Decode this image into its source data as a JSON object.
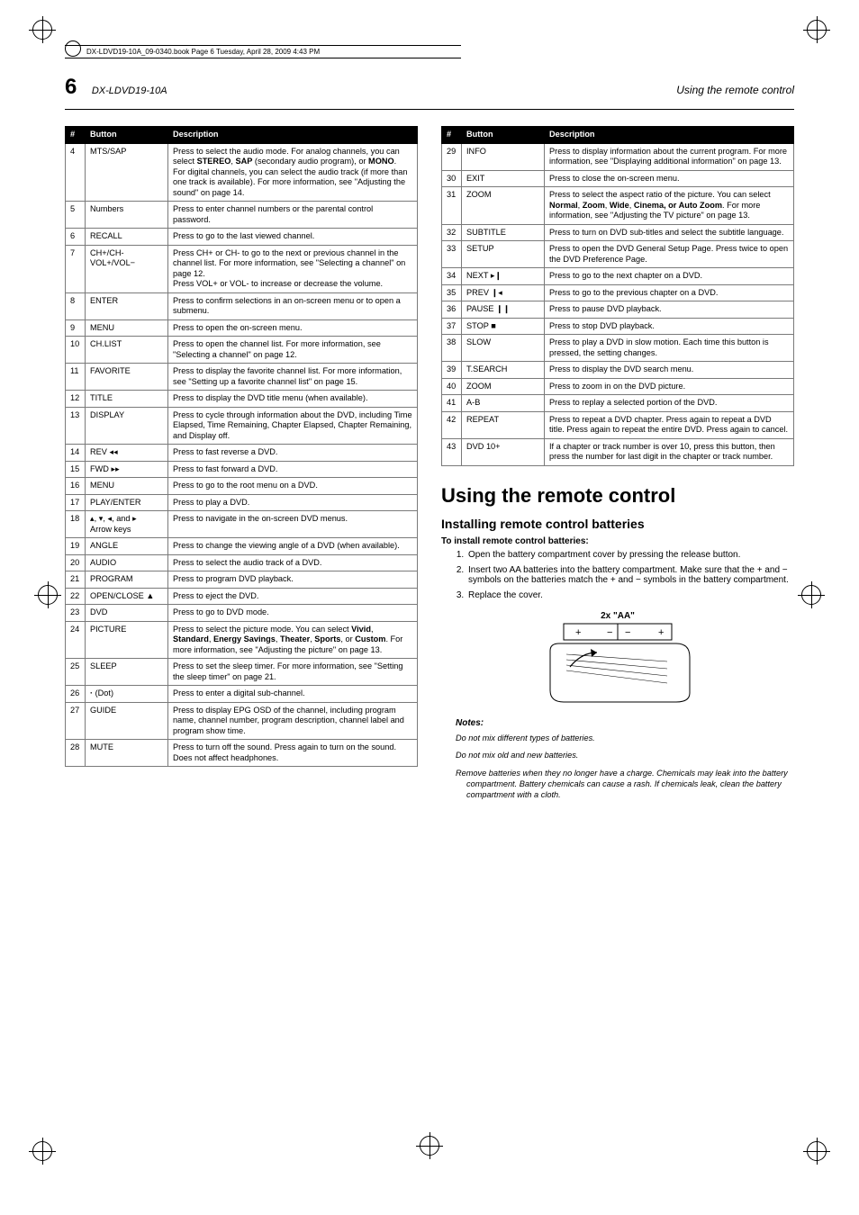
{
  "pageNumber": "6",
  "runningTop": "DX-LDVD19-10A_09-0340.book  Page 6  Tuesday, April 28, 2009  4:43 PM",
  "model": "DX-LDVD19-10A",
  "sectionRight": "Using the remote control",
  "tableHeaders": {
    "num": "#",
    "btn": "Button",
    "desc": "Description"
  },
  "leftRows": [
    {
      "n": "4",
      "b": "MTS/SAP",
      "d": "Press to select the audio mode. For analog channels, you can select <b>STEREO</b>, <b>SAP</b> (secondary audio program), or <b>MONO</b>.<br>For digital channels, you can select the audio track (if more than one track is available). For more information, see \"Adjusting the sound\" on page 14."
    },
    {
      "n": "5",
      "b": "Numbers",
      "d": "Press to enter channel numbers or the parental control password."
    },
    {
      "n": "6",
      "b": "RECALL",
      "d": "Press to go to the last viewed channel."
    },
    {
      "n": "7",
      "b": "CH+/CH-<br>VOL+/VOL−",
      "d": "Press CH+ or CH- to go to the next or previous channel in the channel list. For more information, see \"Selecting a channel\" on page 12.<br>Press VOL+ or VOL- to increase or decrease the volume."
    },
    {
      "n": "8",
      "b": "ENTER",
      "d": "Press to confirm selections in an on-screen menu or to open a submenu."
    },
    {
      "n": "9",
      "b": "MENU",
      "d": "Press to open the on-screen menu."
    },
    {
      "n": "10",
      "b": "CH.LIST",
      "d": "Press to open the channel list. For more information, see \"Selecting a channel\" on page 12."
    },
    {
      "n": "11",
      "b": "FAVORITE",
      "d": "Press to display the favorite channel list. For more information, see \"Setting up a favorite channel list\" on page 15."
    },
    {
      "n": "12",
      "b": "TITLE",
      "d": "Press to display the DVD title menu (when available)."
    },
    {
      "n": "13",
      "b": "DISPLAY",
      "d": "Press to cycle through information about the DVD, including Time Elapsed, Time Remaining, Chapter Elapsed, Chapter Remaining, and Display off."
    },
    {
      "n": "14",
      "b": "REV <span class='sym'>◂◂</span>",
      "d": "Press to fast reverse a DVD."
    },
    {
      "n": "15",
      "b": "FWD <span class='sym'>▸▸</span>",
      "d": "Press to fast forward a DVD."
    },
    {
      "n": "16",
      "b": "MENU",
      "d": "Press to go to the root menu on a DVD."
    },
    {
      "n": "17",
      "b": "PLAY/ENTER",
      "d": "Press to play a DVD."
    },
    {
      "n": "18",
      "b": "<span class='sym'>▴</span>, <span class='sym'>▾</span>, <span class='sym'>◂</span>, and <span class='sym'>▸</span><br>Arrow keys",
      "d": "Press to navigate in the on-screen DVD menus."
    },
    {
      "n": "19",
      "b": "ANGLE",
      "d": "Press to change the viewing angle of a DVD (when available)."
    },
    {
      "n": "20",
      "b": "AUDIO",
      "d": "Press to select the audio track of a DVD."
    },
    {
      "n": "21",
      "b": "PROGRAM",
      "d": "Press to program DVD playback."
    },
    {
      "n": "22",
      "b": "OPEN/CLOSE <span class='sym'>▲</span>",
      "d": "Press to eject the DVD."
    },
    {
      "n": "23",
      "b": "DVD",
      "d": "Press to go to DVD mode."
    },
    {
      "n": "24",
      "b": "PICTURE",
      "d": "Press to select the picture mode. You can select <b>Vivid</b>, <b>Standard</b>, <b>Energy Savings</b>, <b>Theater</b>, <b>Sports</b>, or <b>Custom</b>. For more information, see \"Adjusting the picture\" on page 13."
    },
    {
      "n": "25",
      "b": "SLEEP",
      "d": "Press to set the sleep timer. For more information, see \"Setting the sleep timer\" on page 21."
    },
    {
      "n": "26",
      "b": "<b>·</b> (Dot)",
      "d": "Press to enter a digital sub-channel."
    },
    {
      "n": "27",
      "b": "GUIDE",
      "d": "Press to display EPG OSD of the channel, including program name, channel number, program description, channel label and program show time."
    },
    {
      "n": "28",
      "b": "MUTE",
      "d": "Press to turn off the sound. Press again to turn on the sound. Does not affect headphones."
    }
  ],
  "rightRows": [
    {
      "n": "29",
      "b": "INFO",
      "d": "Press to display information about the current program. For more information, see \"Displaying additional information\" on page 13."
    },
    {
      "n": "30",
      "b": "EXIT",
      "d": "Press to close the on-screen menu."
    },
    {
      "n": "31",
      "b": "ZOOM",
      "d": "Press to select the aspect ratio of the picture. You can select <b>Normal</b>, <b>Zoom</b>, <b>Wide</b>, <b>Cinema, or Auto Zoom</b>. For more information, see \"Adjusting the TV picture\" on page 13."
    },
    {
      "n": "32",
      "b": "SUBTITLE",
      "d": "Press to turn on DVD sub-titles and select the subtitle language."
    },
    {
      "n": "33",
      "b": "SETUP",
      "d": "Press to open the DVD General Setup Page. Press twice to open the DVD Preference Page."
    },
    {
      "n": "34",
      "b": "NEXT <span class='sym'>▸❙</span>",
      "d": "Press to go to the next chapter on a DVD."
    },
    {
      "n": "35",
      "b": "PREV <span class='sym'>❙◂</span>",
      "d": "Press to go to the previous chapter on a DVD."
    },
    {
      "n": "36",
      "b": "PAUSE <span class='sym'>❙❙</span>",
      "d": "Press to pause DVD playback."
    },
    {
      "n": "37",
      "b": "STOP <span class='sym'>■</span>",
      "d": "Press to stop DVD playback."
    },
    {
      "n": "38",
      "b": "SLOW",
      "d": "Press to play a DVD in slow motion. Each time this button is pressed, the setting changes."
    },
    {
      "n": "39",
      "b": "T.SEARCH",
      "d": "Press to display the DVD search menu."
    },
    {
      "n": "40",
      "b": "ZOOM",
      "d": "Press to zoom in on the DVD picture."
    },
    {
      "n": "41",
      "b": "A-B",
      "d": "Press to replay a selected portion of the DVD."
    },
    {
      "n": "42",
      "b": "REPEAT",
      "d": "Press to repeat a DVD chapter. Press again to repeat a DVD title. Press again to repeat the entire DVD. Press again to cancel."
    },
    {
      "n": "43",
      "b": "DVD 10+",
      "d": "If a chapter or track number is over 10, press this button, then press the number for last digit in the chapter or track number."
    }
  ],
  "h1": "Using the remote control",
  "h2": "Installing remote control batteries",
  "lead": "To install remote control batteries:",
  "steps": [
    "Open the battery compartment cover by pressing the release button.",
    "Insert two AA batteries into the battery compartment. Make sure that the + and − symbols on the batteries match the + and − symbols in the battery compartment.",
    "Replace the cover."
  ],
  "batteryLabel": "2x \"AA\"",
  "notesHead": "Notes:",
  "notes": [
    "Do not mix different types of batteries.",
    "Do not mix old and new batteries.",
    "Remove batteries when they no longer have a charge. Chemicals may leak into the battery compartment. Battery chemicals can cause a rash. If chemicals leak, clean the battery compartment with a cloth."
  ],
  "colors": {
    "headerBg": "#000000",
    "headerFg": "#ffffff",
    "border": "#7a7a7a"
  }
}
